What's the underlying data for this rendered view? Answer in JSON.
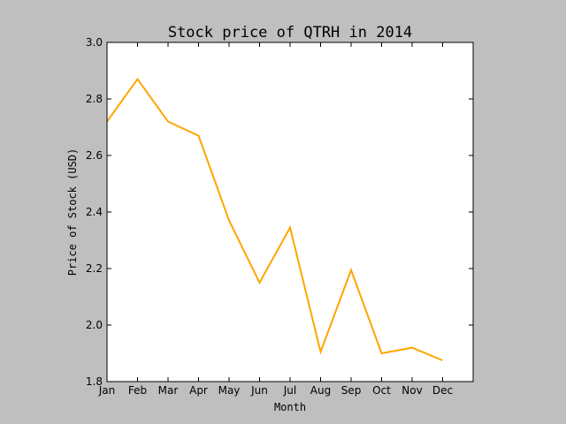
{
  "chart_data": {
    "type": "line",
    "title": "Stock price of QTRH in 2014",
    "xlabel": "Month",
    "ylabel": "Price of Stock (USD)",
    "categories": [
      "Jan",
      "Feb",
      "Mar",
      "Apr",
      "May",
      "Jun",
      "Jul",
      "Aug",
      "Sep",
      "Oct",
      "Nov",
      "Dec"
    ],
    "series": [
      {
        "color": "#ffa500",
        "values": [
          2.72,
          2.87,
          2.72,
          2.67,
          2.37,
          2.15,
          2.345,
          1.905,
          2.195,
          1.9,
          1.92,
          1.875
        ]
      }
    ],
    "ylim": [
      1.8,
      3.0
    ],
    "yticks": [
      "1.8",
      "2.0",
      "2.2",
      "2.4",
      "2.6",
      "2.8",
      "3.0"
    ],
    "grid": false,
    "legend": "none"
  }
}
